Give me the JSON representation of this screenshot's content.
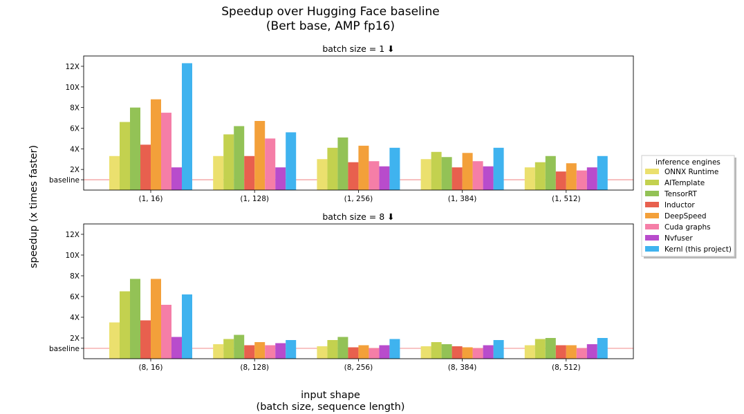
{
  "figure": {
    "title_line1": "Speedup over Hugging Face baseline",
    "title_line2": "(Bert base, AMP fp16)",
    "ylabel": "speedup (x times faster)",
    "xlabel_line1": "input shape",
    "xlabel_line2": "(batch size, sequence length)",
    "legend_title": "inference engines"
  },
  "chart_data": [
    {
      "type": "bar",
      "title": "batch size = 1 ⬇",
      "categories": [
        "(1, 16)",
        "(1, 128)",
        "(1, 256)",
        "(1, 384)",
        "(1, 512)"
      ],
      "ylim": [
        0,
        13
      ],
      "yticks": [
        2,
        4,
        6,
        8,
        10,
        12
      ],
      "ytick_labels": [
        "2X",
        "4X",
        "6X",
        "8X",
        "10X",
        "12X"
      ],
      "baseline": {
        "value": 1,
        "label": "baseline",
        "color": "#f4a0a0"
      },
      "series": [
        {
          "name": "ONNX Runtime",
          "color": "#ebe06e",
          "values": [
            3.3,
            3.3,
            3.0,
            3.0,
            2.2
          ]
        },
        {
          "name": "AITemplate",
          "color": "#c3d14f",
          "values": [
            6.6,
            5.4,
            4.1,
            3.7,
            2.7
          ]
        },
        {
          "name": "TensorRT",
          "color": "#93c256",
          "values": [
            8.0,
            6.2,
            5.1,
            3.2,
            3.3
          ]
        },
        {
          "name": "Inductor",
          "color": "#e8604e",
          "values": [
            4.4,
            3.3,
            2.7,
            2.2,
            1.8
          ]
        },
        {
          "name": "DeepSpeed",
          "color": "#f3a03a",
          "values": [
            8.8,
            6.7,
            4.3,
            3.6,
            2.6
          ]
        },
        {
          "name": "Cuda graphs",
          "color": "#f57ea7",
          "values": [
            7.5,
            5.0,
            2.8,
            2.8,
            1.9
          ]
        },
        {
          "name": "Nvfuser",
          "color": "#b84ccc",
          "values": [
            2.2,
            2.2,
            2.3,
            2.3,
            2.2
          ]
        },
        {
          "name": "Kernl (this project)",
          "color": "#3fb3ef",
          "values": [
            12.3,
            5.6,
            4.1,
            4.1,
            3.3
          ]
        }
      ]
    },
    {
      "type": "bar",
      "title": "batch size = 8 ⬇",
      "categories": [
        "(8, 16)",
        "(8, 128)",
        "(8, 256)",
        "(8, 384)",
        "(8, 512)"
      ],
      "ylim": [
        0,
        13
      ],
      "yticks": [
        2,
        4,
        6,
        8,
        10,
        12
      ],
      "ytick_labels": [
        "2X",
        "4X",
        "6X",
        "8X",
        "10X",
        "12X"
      ],
      "baseline": {
        "value": 1,
        "label": "baseline",
        "color": "#f4a0a0"
      },
      "series": [
        {
          "name": "ONNX Runtime",
          "color": "#ebe06e",
          "values": [
            3.5,
            1.4,
            1.2,
            1.2,
            1.3
          ]
        },
        {
          "name": "AITemplate",
          "color": "#c3d14f",
          "values": [
            6.5,
            1.9,
            1.8,
            1.6,
            1.9
          ]
        },
        {
          "name": "TensorRT",
          "color": "#93c256",
          "values": [
            7.7,
            2.3,
            2.1,
            1.4,
            2.0
          ]
        },
        {
          "name": "Inductor",
          "color": "#e8604e",
          "values": [
            3.7,
            1.3,
            1.1,
            1.2,
            1.3
          ]
        },
        {
          "name": "DeepSpeed",
          "color": "#f3a03a",
          "values": [
            7.7,
            1.6,
            1.3,
            1.1,
            1.3
          ]
        },
        {
          "name": "Cuda graphs",
          "color": "#f57ea7",
          "values": [
            5.2,
            1.3,
            1.0,
            1.0,
            1.0
          ]
        },
        {
          "name": "Nvfuser",
          "color": "#b84ccc",
          "values": [
            2.1,
            1.5,
            1.3,
            1.3,
            1.4
          ]
        },
        {
          "name": "Kernl (this project)",
          "color": "#3fb3ef",
          "values": [
            6.2,
            1.8,
            1.9,
            1.8,
            2.0
          ]
        }
      ]
    }
  ]
}
